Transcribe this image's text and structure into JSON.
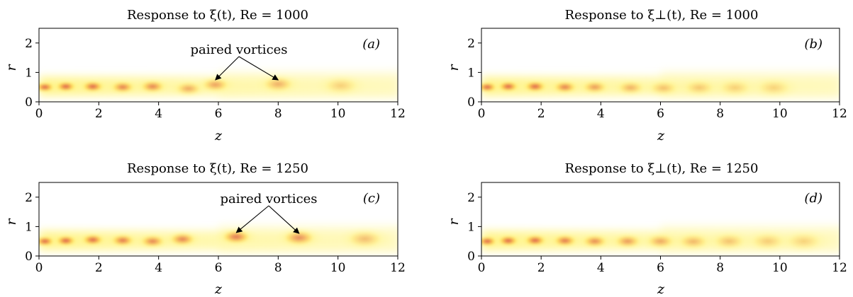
{
  "figure": {
    "colors": {
      "field_light": "#fff7a0",
      "field_mid": "#ffd23a",
      "vortex_core": "#d8405a"
    }
  },
  "chart_data": [
    {
      "type": "heatmap",
      "panel": "(a)",
      "title": "Response to ξ(t), Re = 1000",
      "xlabel": "z",
      "ylabel": "r",
      "xlim": [
        0,
        12
      ],
      "ylim": [
        0,
        2.5
      ],
      "xticks": [
        "0",
        "2",
        "4",
        "6",
        "8",
        "10",
        "12"
      ],
      "yticks": [
        "0",
        "1",
        "2"
      ],
      "grid": false,
      "annotation": {
        "text": "paired vortices",
        "targets": [
          [
            5.9,
            0.6
          ],
          [
            8.0,
            0.6
          ]
        ]
      },
      "features": [
        {
          "z": 0.2,
          "r": 0.5,
          "s": 1.0
        },
        {
          "z": 0.9,
          "r": 0.52,
          "s": 1.0
        },
        {
          "z": 1.8,
          "r": 0.52,
          "s": 0.95
        },
        {
          "z": 2.8,
          "r": 0.5,
          "s": 0.75
        },
        {
          "z": 3.8,
          "r": 0.52,
          "s": 0.7
        },
        {
          "z": 5.0,
          "r": 0.45,
          "s": 0.45
        },
        {
          "z": 5.9,
          "r": 0.58,
          "s": 0.5
        },
        {
          "z": 8.0,
          "r": 0.6,
          "s": 0.4
        },
        {
          "z": 10.1,
          "r": 0.55,
          "s": 0.2
        }
      ]
    },
    {
      "type": "heatmap",
      "panel": "(b)",
      "title": "Response to ξ⊥(t), Re = 1000",
      "xlabel": "z",
      "ylabel": "r",
      "xlim": [
        0,
        12
      ],
      "ylim": [
        0,
        2.5
      ],
      "xticks": [
        "0",
        "2",
        "4",
        "6",
        "8",
        "10",
        "12"
      ],
      "yticks": [
        "0",
        "1",
        "2"
      ],
      "grid": false,
      "features": [
        {
          "z": 0.2,
          "r": 0.5,
          "s": 1.0
        },
        {
          "z": 0.9,
          "r": 0.52,
          "s": 1.0
        },
        {
          "z": 1.8,
          "r": 0.52,
          "s": 0.95
        },
        {
          "z": 2.8,
          "r": 0.5,
          "s": 0.75
        },
        {
          "z": 3.8,
          "r": 0.5,
          "s": 0.55
        },
        {
          "z": 5.0,
          "r": 0.48,
          "s": 0.4
        },
        {
          "z": 6.1,
          "r": 0.47,
          "s": 0.3
        },
        {
          "z": 7.3,
          "r": 0.48,
          "s": 0.25
        },
        {
          "z": 8.5,
          "r": 0.48,
          "s": 0.2
        },
        {
          "z": 9.8,
          "r": 0.48,
          "s": 0.18
        }
      ]
    },
    {
      "type": "heatmap",
      "panel": "(c)",
      "title": "Response to ξ(t), Re = 1250",
      "xlabel": "z",
      "ylabel": "r",
      "xlim": [
        0,
        12
      ],
      "ylim": [
        0,
        2.5
      ],
      "xticks": [
        "0",
        "2",
        "4",
        "6",
        "8",
        "10",
        "12"
      ],
      "yticks": [
        "0",
        "1",
        "2"
      ],
      "grid": false,
      "annotation": {
        "text": "paired vortices",
        "targets": [
          [
            6.6,
            0.65
          ],
          [
            8.7,
            0.62
          ]
        ]
      },
      "features": [
        {
          "z": 0.2,
          "r": 0.5,
          "s": 1.0
        },
        {
          "z": 0.9,
          "r": 0.52,
          "s": 1.0
        },
        {
          "z": 1.8,
          "r": 0.55,
          "s": 0.95
        },
        {
          "z": 2.8,
          "r": 0.53,
          "s": 0.8
        },
        {
          "z": 3.8,
          "r": 0.5,
          "s": 0.7
        },
        {
          "z": 4.8,
          "r": 0.57,
          "s": 0.7
        },
        {
          "z": 6.6,
          "r": 0.65,
          "s": 0.75
        },
        {
          "z": 8.7,
          "r": 0.62,
          "s": 0.6
        },
        {
          "z": 10.9,
          "r": 0.58,
          "s": 0.3
        }
      ]
    },
    {
      "type": "heatmap",
      "panel": "(d)",
      "title": "Response to ξ⊥(t), Re = 1250",
      "xlabel": "z",
      "ylabel": "r",
      "xlim": [
        0,
        12
      ],
      "ylim": [
        0,
        2.5
      ],
      "xticks": [
        "0",
        "2",
        "4",
        "6",
        "8",
        "10",
        "12"
      ],
      "yticks": [
        "0",
        "1",
        "2"
      ],
      "grid": false,
      "features": [
        {
          "z": 0.2,
          "r": 0.5,
          "s": 1.0
        },
        {
          "z": 0.9,
          "r": 0.52,
          "s": 1.0
        },
        {
          "z": 1.8,
          "r": 0.53,
          "s": 0.95
        },
        {
          "z": 2.8,
          "r": 0.52,
          "s": 0.8
        },
        {
          "z": 3.8,
          "r": 0.5,
          "s": 0.65
        },
        {
          "z": 4.9,
          "r": 0.5,
          "s": 0.55
        },
        {
          "z": 6.0,
          "r": 0.5,
          "s": 0.45
        },
        {
          "z": 7.1,
          "r": 0.49,
          "s": 0.35
        },
        {
          "z": 8.3,
          "r": 0.5,
          "s": 0.28
        },
        {
          "z": 9.6,
          "r": 0.5,
          "s": 0.22
        },
        {
          "z": 10.8,
          "r": 0.5,
          "s": 0.18
        }
      ]
    }
  ]
}
